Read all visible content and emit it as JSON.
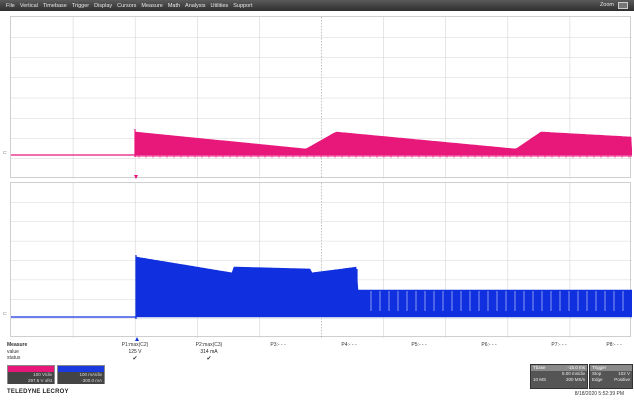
{
  "menu": {
    "items": [
      "File",
      "Vertical",
      "Timebase",
      "Trigger",
      "Display",
      "Cursors",
      "Measure",
      "Math",
      "Analysis",
      "Utilities",
      "Support"
    ],
    "zoom_label": "Zoom"
  },
  "traces": {
    "top_color": "#e8177a",
    "bottom_color": "#1030e0"
  },
  "measure": {
    "labels": [
      "Measure",
      "value",
      "status"
    ],
    "params": [
      {
        "name": "P1:max(C2)",
        "value": "125 V",
        "status": "✔"
      },
      {
        "name": "P2:max(C3)",
        "value": "314 mA",
        "status": "✔"
      },
      {
        "name": "P3:- - -",
        "value": "",
        "status": ""
      },
      {
        "name": "P4:- - -",
        "value": "",
        "status": ""
      },
      {
        "name": "P5:- - -",
        "value": "",
        "status": ""
      },
      {
        "name": "P6:- - -",
        "value": "",
        "status": ""
      },
      {
        "name": "P7:- - -",
        "value": "",
        "status": ""
      },
      {
        "name": "P8:- - -",
        "value": "",
        "status": ""
      }
    ]
  },
  "channels": {
    "c2": {
      "line1": "100 V/div",
      "line2": "297.5 V ofst"
    },
    "c3": {
      "line1": "100 mA/div",
      "line2": "-300.0 mA"
    }
  },
  "timebase": {
    "title": "Tbase",
    "value": "-15.0 ms",
    "line2": "5.00 ms/div",
    "line3a": "10 MS",
    "line3b": "200 MS/s"
  },
  "trigger": {
    "title": "Trigger",
    "line2a": "Stop",
    "line2b": "102 V",
    "line3a": "Edge",
    "line3b": "Positive"
  },
  "brand": "TELEDYNE LECROY",
  "timestamp": "8/18/2020 5:52:39 PM"
}
